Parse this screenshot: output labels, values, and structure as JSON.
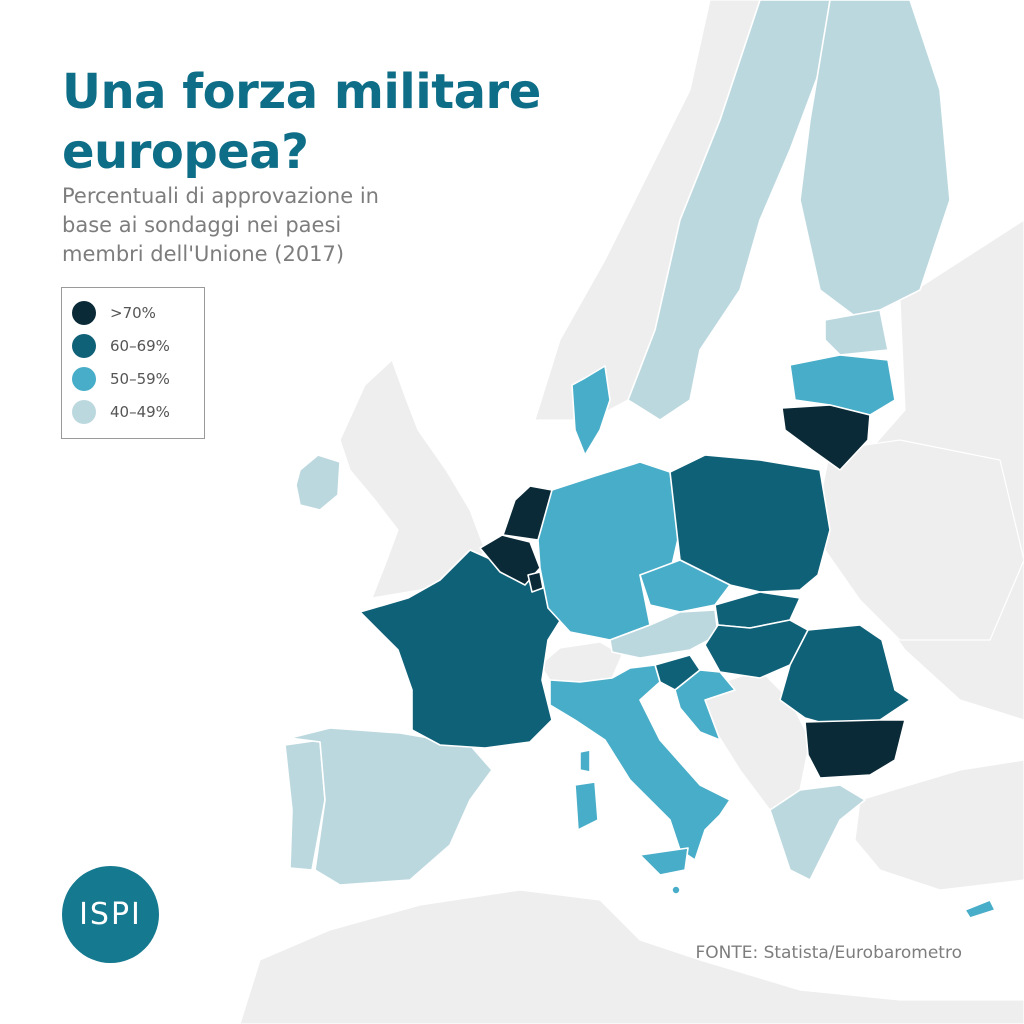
{
  "title": "Una forza militare europea?",
  "subtitle": "Percentuali di approvazione in base ai sondaggi nei paesi membri dell'Unione (2017)",
  "legend": [
    {
      "label": ">70%",
      "color": "#0b2a37"
    },
    {
      "label": "60–69%",
      "color": "#0f6178"
    },
    {
      "label": "50–59%",
      "color": "#48adc8"
    },
    {
      "label": "40–49%",
      "color": "#bcd8df"
    }
  ],
  "logo": "ISPI",
  "source": "FONTE: Statista/Eurobarometro",
  "colors": {
    "background_land": "#eeeeee",
    "sea": "#ffffff",
    "title": "#0e6e87",
    "logo_bg": "#15798f"
  },
  "chart_data": {
    "type": "choropleth",
    "categories": [
      ">70%",
      "60–69%",
      "50–59%",
      "40–49%"
    ],
    "countries": [
      {
        "id": "netherlands",
        "category": ">70%"
      },
      {
        "id": "belgium",
        "category": ">70%"
      },
      {
        "id": "luxembourg",
        "category": ">70%"
      },
      {
        "id": "lithuania",
        "category": ">70%"
      },
      {
        "id": "bulgaria",
        "category": ">70%"
      },
      {
        "id": "france",
        "category": "60–69%"
      },
      {
        "id": "poland",
        "category": "60–69%"
      },
      {
        "id": "slovakia",
        "category": "60–69%"
      },
      {
        "id": "hungary",
        "category": "60–69%"
      },
      {
        "id": "romania",
        "category": "60–69%"
      },
      {
        "id": "slovenia",
        "category": "60–69%"
      },
      {
        "id": "germany",
        "category": "50–59%"
      },
      {
        "id": "denmark",
        "category": "50–59%"
      },
      {
        "id": "czechia",
        "category": "50–59%"
      },
      {
        "id": "italy",
        "category": "50–59%"
      },
      {
        "id": "croatia",
        "category": "50–59%"
      },
      {
        "id": "latvia",
        "category": "50–59%"
      },
      {
        "id": "malta",
        "category": "50–59%"
      },
      {
        "id": "cyprus",
        "category": "50–59%"
      },
      {
        "id": "spain",
        "category": "40–49%"
      },
      {
        "id": "portugal",
        "category": "40–49%"
      },
      {
        "id": "ireland",
        "category": "40–49%"
      },
      {
        "id": "sweden",
        "category": "40–49%"
      },
      {
        "id": "finland",
        "category": "40–49%"
      },
      {
        "id": "estonia",
        "category": "40–49%"
      },
      {
        "id": "austria",
        "category": "40–49%"
      },
      {
        "id": "greece",
        "category": "40–49%"
      }
    ]
  }
}
